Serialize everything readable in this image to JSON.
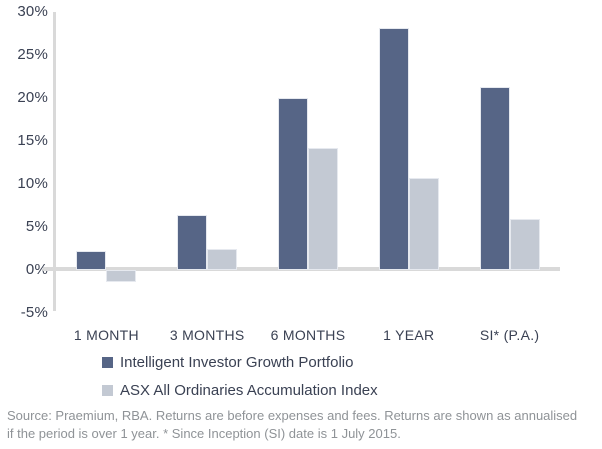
{
  "chart_data": {
    "type": "bar",
    "title": "",
    "xlabel": "",
    "ylabel": "",
    "categories": [
      "1 MONTH",
      "3 MONTHS",
      "6 MONTHS",
      "1 YEAR",
      "SI* (P.A.)"
    ],
    "series": [
      {
        "name": "Intelligent Investor Growth Portfolio",
        "color": "#566586",
        "values": [
          2.2,
          6.4,
          20.0,
          28.1,
          21.3
        ]
      },
      {
        "name": "ASX All Ordinaries Accumulation Index",
        "color": "#c3c9d3",
        "values": [
          -1.4,
          2.4,
          14.2,
          10.7,
          5.9
        ]
      }
    ],
    "y_ticks": [
      {
        "label": "30%",
        "value": 30
      },
      {
        "label": "25%",
        "value": 25
      },
      {
        "label": "20%",
        "value": 20
      },
      {
        "label": "15%",
        "value": 15
      },
      {
        "label": "10%",
        "value": 10
      },
      {
        "label": "5%",
        "value": 5
      },
      {
        "label": "0%",
        "value": 0
      },
      {
        "label": "-5%",
        "value": -5
      }
    ],
    "ylim": [
      -5,
      30
    ],
    "grid": "none",
    "legend_position": "bottom-left"
  },
  "footer": {
    "line1": "Source: Praemium, RBA. Returns are before expenses and fees. Returns are shown as annualised",
    "line2": "if the period is over 1 year. * Since Inception (SI) date is 1 July 2015."
  },
  "colors": {
    "axis_line": "#d9d9d9",
    "tick_text": "#3a4153",
    "footer_text": "#8f9397"
  }
}
